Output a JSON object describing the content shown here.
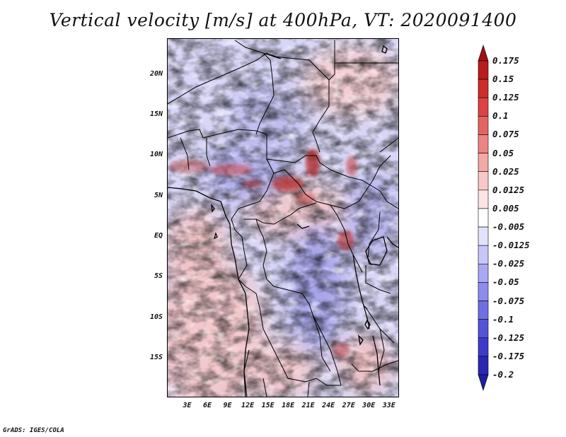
{
  "title": "Vertical velocity [m/s] at 400hPa, VT: 2020091400",
  "footer": "GrADS: IGES/COLA",
  "map": {
    "lat_labels": [
      "20N",
      "15N",
      "10N",
      "5N",
      "EQ",
      "5S",
      "10S",
      "15S"
    ],
    "lat_values": [
      20,
      15,
      10,
      5,
      0,
      -5,
      -10,
      -15
    ],
    "lon_labels": [
      "3E",
      "6E",
      "9E",
      "12E",
      "15E",
      "18E",
      "21E",
      "24E",
      "27E",
      "30E",
      "33E"
    ],
    "lon_values": [
      3,
      6,
      9,
      12,
      15,
      18,
      21,
      24,
      27,
      30,
      33
    ],
    "lon_range": [
      0,
      34.5
    ],
    "lat_range": [
      -19.8,
      24.5
    ],
    "field": "vertical velocity",
    "units": "m/s",
    "level": "400hPa",
    "valid_time": "2020091400"
  },
  "colorbar": {
    "levels": [
      "0.175",
      "0.15",
      "0.125",
      "0.1",
      "0.075",
      "0.05",
      "0.025",
      "0.0125",
      "0.005",
      "-0.005",
      "-0.0125",
      "-0.025",
      "-0.05",
      "-0.075",
      "-0.1",
      "-0.125",
      "-0.175",
      "-0.2"
    ],
    "colors": [
      "#a01010",
      "#b81c1c",
      "#cc2c2c",
      "#dc4444",
      "#e46464",
      "#ec8484",
      "#f4a8a8",
      "#f8c8c8",
      "#fce4e4",
      "#ffffff",
      "#e2e2fc",
      "#c6c6f8",
      "#a8a8f2",
      "#8c8cec",
      "#7070e4",
      "#5454d8",
      "#3c3cc8",
      "#2828b0",
      "#1e1ea0"
    ]
  }
}
